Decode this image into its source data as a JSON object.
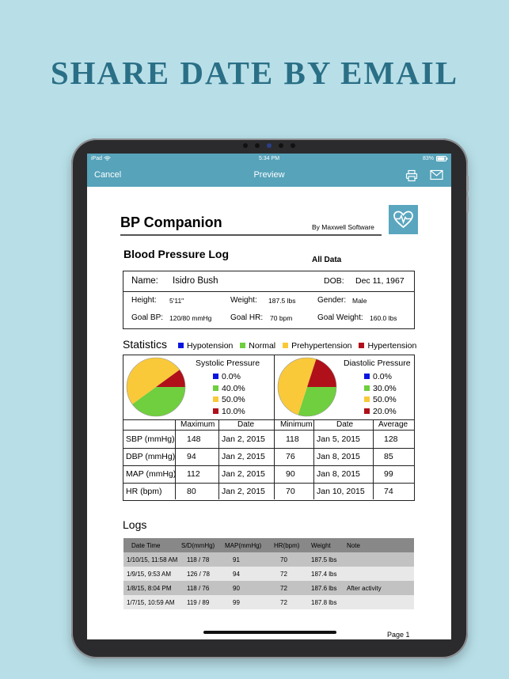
{
  "headline": "SHARE DATE BY EMAIL",
  "status_bar": {
    "carrier": "iPad",
    "time": "5:34 PM",
    "battery": "83%"
  },
  "nav": {
    "cancel": "Cancel",
    "title": "Preview",
    "print_icon": "printer-icon",
    "mail_icon": "mail-icon"
  },
  "report": {
    "app_title": "BP  Companion",
    "byline": "By Maxwell Software",
    "section_title": "Blood Pressure Log",
    "scope": "All Data",
    "name_label": "Name:",
    "name": "Isidro Bush",
    "dob_label": "DOB:",
    "dob": "Dec 11, 1967",
    "height_label": "Height:",
    "height": "5'11\"",
    "weight_label": "Weight:",
    "weight": "187.5 lbs",
    "gender_label": "Gender:",
    "gender": "Male",
    "goal_bp_label": "Goal BP:",
    "goal_bp": "120/80 mmHg",
    "goal_hr_label": "Goal HR:",
    "goal_hr": "70 bpm",
    "goal_weight_label": "Goal Weight:",
    "goal_weight": "160.0 lbs",
    "statistics_title": "Statistics",
    "legend": [
      {
        "label": "Hypotension",
        "color": "#0a16e0"
      },
      {
        "label": "Normal",
        "color": "#6fcf3e"
      },
      {
        "label": "Prehypertension",
        "color": "#f9c93a"
      },
      {
        "label": "Hypertension",
        "color": "#b0101a"
      }
    ],
    "systolic": {
      "title": "Systolic Pressure",
      "values": [
        0.0,
        40.0,
        50.0,
        10.0
      ],
      "labels": [
        "0.0%",
        "40.0%",
        "50.0%",
        "10.0%"
      ]
    },
    "diastolic": {
      "title": "Diastolic Pressure",
      "values": [
        0.0,
        30.0,
        50.0,
        20.0
      ],
      "labels": [
        "0.0%",
        "30.0%",
        "50.0%",
        "20.0%"
      ]
    },
    "stats_headers": [
      "Maximum",
      "Date",
      "Minimum",
      "Date",
      "Average"
    ],
    "stats_rows": [
      {
        "label": "SBP (mmHg)",
        "max": "148",
        "max_date": "Jan 2, 2015",
        "min": "118",
        "min_date": "Jan 5, 2015",
        "avg": "128"
      },
      {
        "label": "DBP (mmHg)",
        "max": "94",
        "max_date": "Jan 2, 2015",
        "min": "76",
        "min_date": "Jan 8, 2015",
        "avg": "85"
      },
      {
        "label": "MAP (mmHg)",
        "max": "112",
        "max_date": "Jan 2, 2015",
        "min": "90",
        "min_date": "Jan 8, 2015",
        "avg": "99"
      },
      {
        "label": "HR (bpm)",
        "max": "80",
        "max_date": "Jan 2, 2015",
        "min": "70",
        "min_date": "Jan 10, 2015",
        "avg": "74"
      }
    ],
    "logs_title": "Logs",
    "logs_headers": [
      "Date Time",
      "S/D(mmHg)",
      "MAP(mmHg)",
      "HR(bpm)",
      "Weight",
      "Note"
    ],
    "logs_rows": [
      {
        "datetime": "1/10/15, 11:58 AM",
        "sd": "118 / 78",
        "map": "91",
        "hr": "70",
        "weight": "187.5 lbs",
        "note": ""
      },
      {
        "datetime": "1/9/15, 9:53 AM",
        "sd": "126 / 78",
        "map": "94",
        "hr": "72",
        "weight": "187.4 lbs",
        "note": ""
      },
      {
        "datetime": "1/8/15, 8:04 PM",
        "sd": "118 / 76",
        "map": "90",
        "hr": "72",
        "weight": "187.6 lbs",
        "note": "After activity"
      },
      {
        "datetime": "1/7/15, 10:59 AM",
        "sd": "119 / 89",
        "map": "99",
        "hr": "72",
        "weight": "187.8 lbs",
        "note": ""
      }
    ],
    "page_label": "Page 1",
    "logo_icon": "heart-pulse-icon"
  }
}
